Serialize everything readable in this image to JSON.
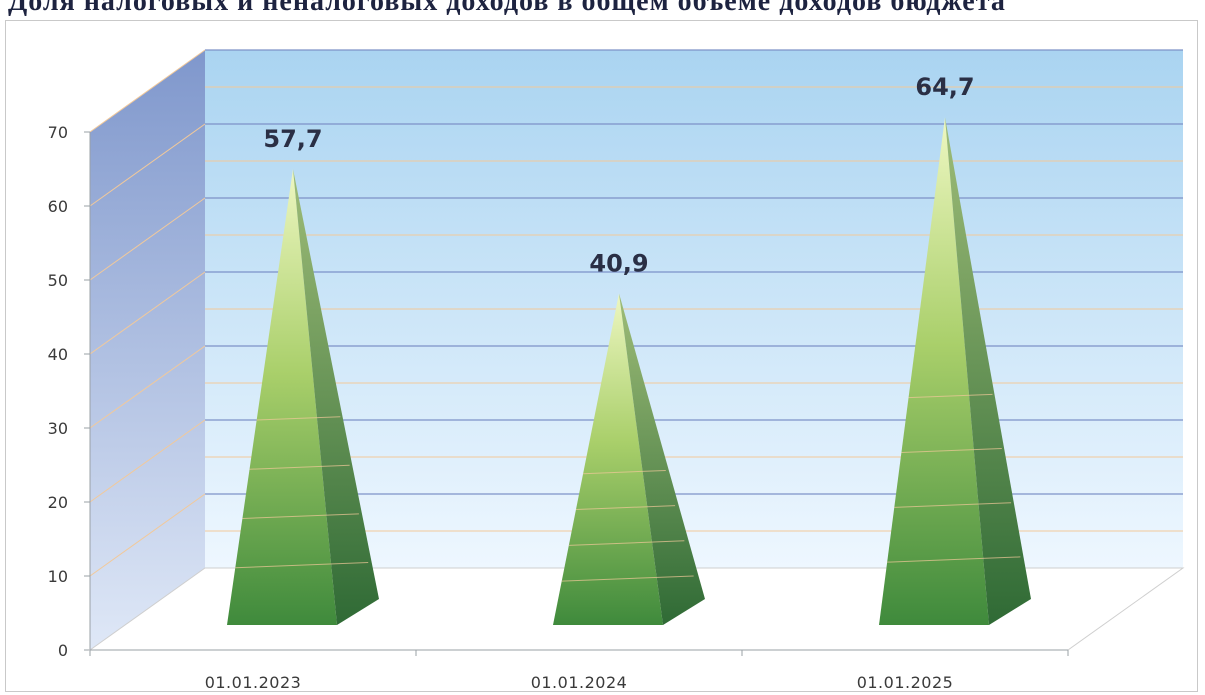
{
  "title": "Доля налоговых и неналоговых доходов в общем объёме доходов бюджета",
  "chart_data": {
    "type": "bar",
    "categories": [
      "01.01.2023",
      "01.01.2024",
      "01.01.2025"
    ],
    "values": [
      57.7,
      40.9,
      64.7
    ],
    "data_labels": [
      "57,7",
      "40,9",
      "64,7"
    ],
    "y_ticks": [
      "0",
      "10",
      "20",
      "30",
      "40",
      "50",
      "60",
      "70"
    ],
    "ylim": [
      0,
      70
    ],
    "xlabel": "",
    "ylabel": "",
    "grid": true,
    "legend": "none",
    "style": "3d-pyramid",
    "colors": {
      "pyramid_light": "#eef7c2",
      "pyramid_mid": "#a9cf6a",
      "pyramid_dark": "#3f8a3c",
      "pyramid_shadow": "#2f6a35",
      "back_wall_top": "#aad4f1",
      "back_wall_bottom": "#eef7ff",
      "side_wall": "#7f97cc",
      "gridline": "#7d92c8",
      "gridline_warm": "#f2c99a"
    }
  }
}
